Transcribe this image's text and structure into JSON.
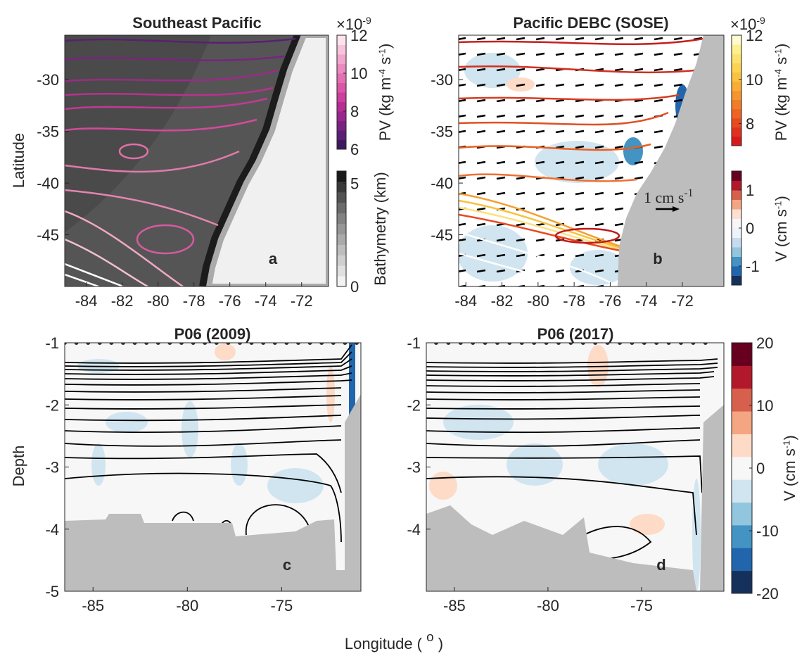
{
  "chart_data": [
    {
      "type": "contour",
      "title": "Southeast Pacific",
      "panel_label": "a",
      "ylabel": "Latitude",
      "xlim": [
        -85.2,
        -70.5
      ],
      "ylim": [
        -50,
        -25.7
      ],
      "xticks": [
        -84,
        -82,
        -80,
        -78,
        -76,
        -74,
        -72
      ],
      "yticks": [
        -45,
        -40,
        -35,
        -30
      ],
      "colorbars": [
        {
          "label": [
            "PV (kg m",
            "-4",
            " s",
            "-1",
            ")"
          ],
          "multiplier": [
            "×10",
            "-9"
          ],
          "lim": [
            6,
            12
          ],
          "ticks": [
            6,
            8,
            10,
            12
          ],
          "colors": [
            "#3d1a5e",
            "#5a1e76",
            "#7a2283",
            "#9a268d",
            "#b72d94",
            "#cc3f9c",
            "#d957a6",
            "#e270b2",
            "#ea8abf",
            "#f1a6cd",
            "#f7c4dc",
            "#fce3ec"
          ]
        },
        {
          "label": [
            "Bathymetry (km)"
          ],
          "lim": [
            0,
            5.6
          ],
          "ticks": [
            0,
            5
          ],
          "colors": [
            "#f2f2f2",
            "#e0e0e0",
            "#cfcfcf",
            "#bdbdbd",
            "#aaaaaa",
            "#969696",
            "#828282",
            "#6b6b6b",
            "#535353",
            "#3a3a3a",
            "#1a1a1a"
          ]
        }
      ]
    },
    {
      "type": "contour",
      "title": "Pacific DEBC (SOSE)",
      "panel_label": "b",
      "vector_scale": [
        "1 cm s",
        "-1"
      ],
      "xlim": [
        -84.4,
        -69.7
      ],
      "ylim": [
        -50,
        -25.7
      ],
      "xticks": [
        -84,
        -82,
        -80,
        -78,
        -76,
        -74,
        -72
      ],
      "yticks": [
        -45,
        -40,
        -35,
        -30
      ],
      "colorbars": [
        {
          "label": [
            "PV (kg m",
            "-4",
            " s",
            "-1",
            ")"
          ],
          "multiplier": [
            "×10",
            "-9"
          ],
          "lim": [
            7,
            12
          ],
          "ticks": [
            8,
            10,
            12
          ],
          "colors": [
            "#d7191c",
            "#e0301e",
            "#e84a20",
            "#ee6424",
            "#f27d28",
            "#f6952e",
            "#f9ac36",
            "#fbc242",
            "#fcd454",
            "#fde36e",
            "#fef08f",
            "#fffbd0"
          ]
        },
        {
          "label": [
            "V (cm s",
            "-1",
            ")"
          ],
          "lim": [
            -1.5,
            1.5
          ],
          "ticks": [
            -1,
            0,
            1
          ],
          "colors": [
            "#16305c",
            "#2166ac",
            "#4393c3",
            "#92c5de",
            "#c6dbef",
            "#edf3f8",
            "#f7f7f7",
            "#fde0d2",
            "#f4a582",
            "#d6604d",
            "#b2182b",
            "#67001f"
          ]
        }
      ]
    },
    {
      "type": "contour",
      "title": "P06 (2009)",
      "panel_label": "c",
      "ylabel": "Depth",
      "xlim": [
        -86.5,
        -70.8
      ],
      "ylim": [
        -5,
        -1
      ],
      "xticks": [
        -85,
        -80,
        -75
      ],
      "yticks": [
        -5,
        -4,
        -3,
        -2,
        -1
      ],
      "colorbars": []
    },
    {
      "type": "contour",
      "title": "P06 (2017)",
      "panel_label": "d",
      "xlim": [
        -86.5,
        -70.6
      ],
      "ylim": [
        -5,
        -1
      ],
      "xticks": [
        -85,
        -80,
        -75
      ],
      "yticks": [
        -4,
        -3,
        -2,
        -1
      ],
      "colorbars": [
        {
          "label": [
            "V (cm s",
            "-1",
            ")"
          ],
          "lim": [
            -20,
            20
          ],
          "ticks": [
            -20,
            -10,
            0,
            10,
            20
          ],
          "colors": [
            "#16305c",
            "#2166ac",
            "#4393c3",
            "#92c5de",
            "#d1e5f0",
            "#f7f7f7",
            "#fddbc7",
            "#f4a582",
            "#d6604d",
            "#b2182b",
            "#67001f"
          ]
        }
      ]
    }
  ],
  "figure": {
    "xlabel": [
      "Longitude ( ",
      "o",
      " )"
    ]
  }
}
